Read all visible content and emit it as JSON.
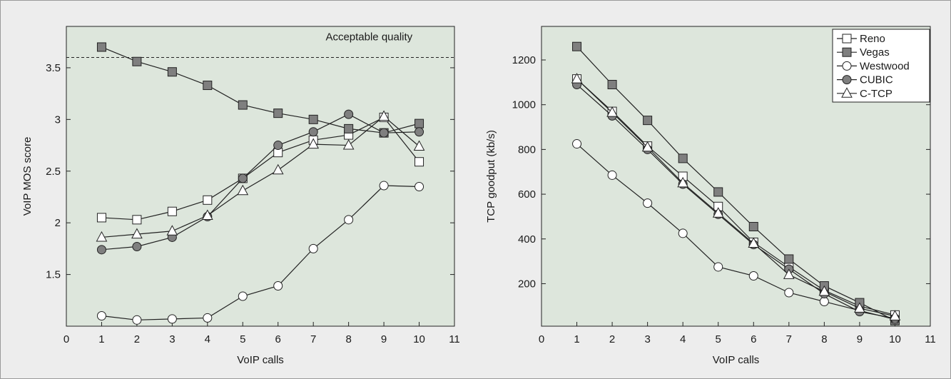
{
  "chart_data": [
    {
      "type": "line",
      "xlabel": "VoIP calls",
      "ylabel": "VoIP MOS score",
      "xlim": [
        0,
        11
      ],
      "ylim": [
        1.0,
        3.9
      ],
      "xticks": [
        0,
        1,
        2,
        3,
        4,
        5,
        6,
        7,
        8,
        9,
        10,
        11
      ],
      "yticks": [
        1.5,
        2,
        2.5,
        3,
        3.5
      ],
      "ytick_labels": [
        "1.5",
        "2",
        "2.5",
        "3",
        "3.5"
      ],
      "grid": false,
      "reference_line": {
        "y": 3.6,
        "style": "dashed",
        "label": "Acceptable quality"
      },
      "x": [
        1,
        2,
        3,
        4,
        5,
        6,
        7,
        8,
        9,
        10
      ],
      "series": [
        {
          "name": "Reno",
          "marker": "square-open",
          "values": [
            2.05,
            2.03,
            2.11,
            2.22,
            2.43,
            2.68,
            2.8,
            2.85,
            3.02,
            2.59
          ]
        },
        {
          "name": "Vegas",
          "marker": "square-filled",
          "values": [
            3.7,
            3.56,
            3.46,
            3.33,
            3.14,
            3.06,
            3.0,
            2.91,
            2.87,
            2.96
          ]
        },
        {
          "name": "Westwood",
          "marker": "circle-open",
          "values": [
            1.1,
            1.06,
            1.07,
            1.08,
            1.29,
            1.39,
            1.75,
            2.03,
            2.36,
            2.35
          ]
        },
        {
          "name": "CUBIC",
          "marker": "circle-filled",
          "values": [
            1.74,
            1.77,
            1.86,
            2.06,
            2.43,
            2.75,
            2.88,
            3.05,
            2.87,
            2.88
          ]
        },
        {
          "name": "C-TCP",
          "marker": "triangle-open",
          "values": [
            1.86,
            1.89,
            1.92,
            2.07,
            2.31,
            2.51,
            2.76,
            2.75,
            3.03,
            2.74
          ]
        }
      ]
    },
    {
      "type": "line",
      "xlabel": "VoIP calls",
      "ylabel": "TCP goodput (kb/s)",
      "xlim": [
        0,
        11
      ],
      "ylim": [
        10,
        1350
      ],
      "xticks": [
        0,
        1,
        2,
        3,
        4,
        5,
        6,
        7,
        8,
        9,
        10,
        11
      ],
      "yticks": [
        200,
        400,
        600,
        800,
        1000,
        1200
      ],
      "ytick_labels": [
        "200",
        "400",
        "600",
        "800",
        "1000",
        "1200"
      ],
      "grid": false,
      "legend_position": "top-right",
      "x": [
        1,
        2,
        3,
        4,
        5,
        6,
        7,
        8,
        9,
        10
      ],
      "series": [
        {
          "name": "Reno",
          "marker": "square-open",
          "values": [
            1115,
            970,
            815,
            680,
            545,
            385,
            275,
            170,
            100,
            60
          ]
        },
        {
          "name": "Vegas",
          "marker": "square-filled",
          "values": [
            1260,
            1090,
            930,
            760,
            610,
            455,
            310,
            190,
            115,
            35
          ]
        },
        {
          "name": "Westwood",
          "marker": "circle-open",
          "values": [
            825,
            685,
            560,
            425,
            275,
            235,
            160,
            120,
            80,
            40
          ]
        },
        {
          "name": "CUBIC",
          "marker": "circle-filled",
          "values": [
            1090,
            950,
            800,
            645,
            510,
            375,
            265,
            155,
            75,
            45
          ]
        },
        {
          "name": "C-TCP",
          "marker": "triangle-open",
          "values": [
            1115,
            965,
            810,
            650,
            515,
            380,
            240,
            165,
            90,
            55
          ]
        }
      ]
    }
  ],
  "style": {
    "plot_background": "#dde6dc",
    "figure_background": "#ededed",
    "line_color": "#222222",
    "filled_marker_color": "#7f7f7f",
    "open_marker_color": "#ffffff"
  }
}
